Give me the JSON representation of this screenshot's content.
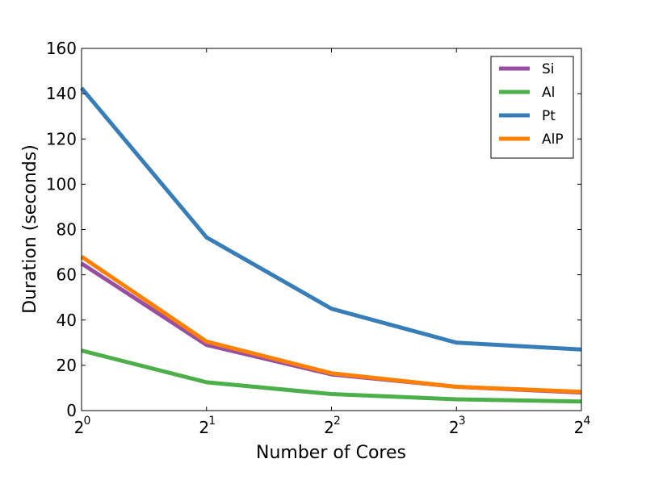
{
  "chart_data": {
    "type": "line",
    "title": "",
    "xlabel": "Number of Cores",
    "ylabel": "Duration (seconds)",
    "xscale": "log2",
    "x": [
      1,
      2,
      4,
      8,
      16
    ],
    "xtick_labels": [
      {
        "base": "2",
        "exp": "0"
      },
      {
        "base": "2",
        "exp": "1"
      },
      {
        "base": "2",
        "exp": "2"
      },
      {
        "base": "2",
        "exp": "3"
      },
      {
        "base": "2",
        "exp": "4"
      }
    ],
    "ylim": [
      0,
      160
    ],
    "yticks": [
      "0",
      "20",
      "40",
      "60",
      "80",
      "100",
      "120",
      "140",
      "160"
    ],
    "grid": false,
    "legend_position": "top-right",
    "series": [
      {
        "name": "Si",
        "color": "#984ea3",
        "values": [
          65,
          29,
          16,
          10.5,
          8
        ]
      },
      {
        "name": "Al",
        "color": "#4daf4a",
        "values": [
          26.5,
          12.5,
          7.3,
          5,
          4
        ]
      },
      {
        "name": "Pt",
        "color": "#377eb8",
        "values": [
          142.5,
          76.5,
          45,
          30,
          27
        ]
      },
      {
        "name": "AlP",
        "color": "#ff7f00",
        "values": [
          68,
          30.5,
          16.5,
          10.5,
          8.3
        ]
      }
    ]
  }
}
